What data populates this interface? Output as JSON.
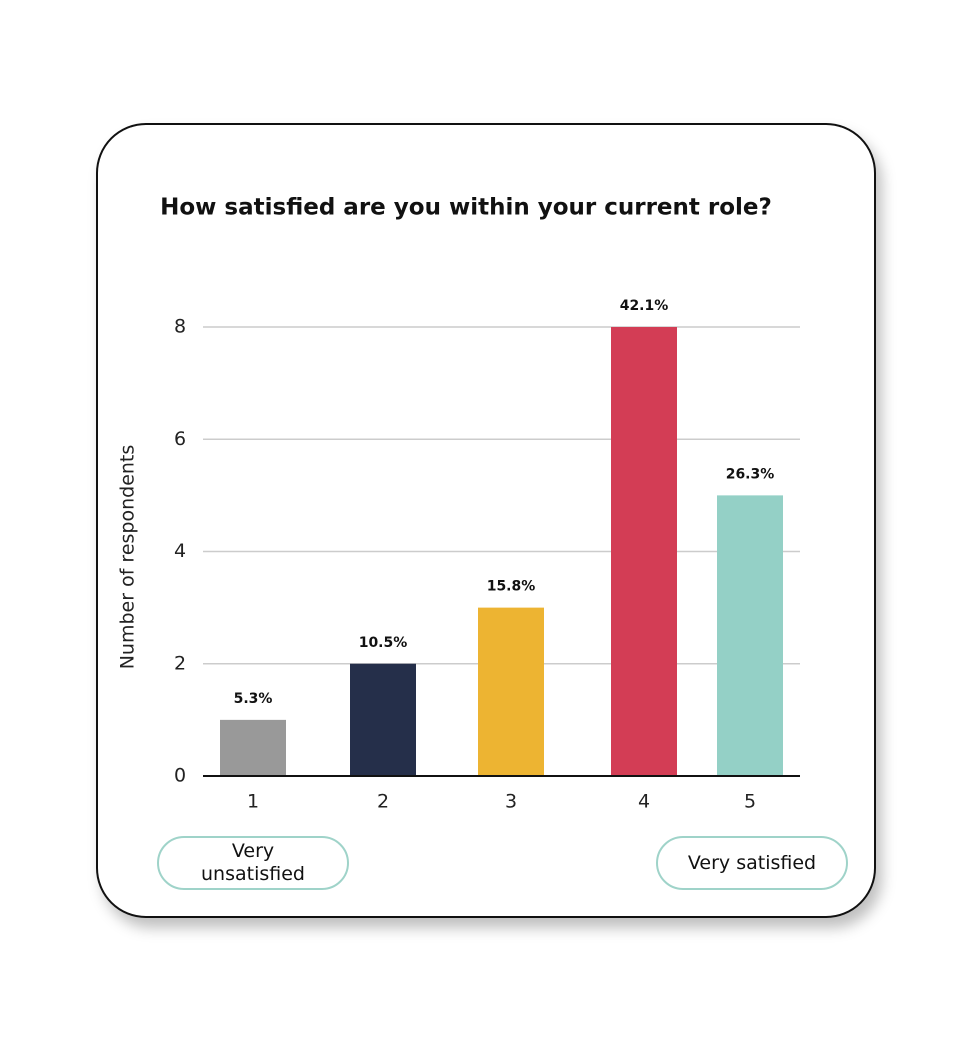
{
  "chart_data": {
    "type": "bar",
    "title": "How satisfied are you within your current role?",
    "ylabel": "Number of respondents",
    "categories": [
      "1",
      "2",
      "3",
      "4",
      "5"
    ],
    "values": [
      1,
      2,
      3,
      8,
      5
    ],
    "bar_labels": [
      "5.3%",
      "10.5%",
      "15.8%",
      "42.1%",
      "26.3%"
    ],
    "colors": [
      "#999999",
      "#252f4a",
      "#edb432",
      "#d33d55",
      "#94d0c6"
    ],
    "ylim": [
      0,
      8
    ],
    "yticks": [
      0,
      2,
      4,
      6,
      8
    ],
    "grid": true,
    "scale_labels": [
      "Very unsatisfied",
      "Very satisfied"
    ]
  }
}
